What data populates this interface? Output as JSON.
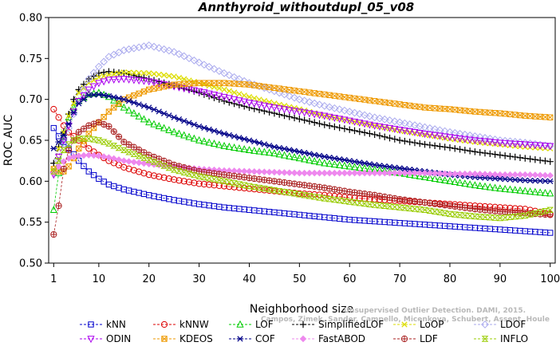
{
  "chart_data": {
    "type": "line",
    "title": "Annthyroid_withoutdupl_05_v08",
    "xlabel": "Neighborhood size",
    "ylabel": "ROC AUC",
    "xlim": [
      0,
      101
    ],
    "ylim": [
      0.5,
      0.8
    ],
    "xticks": [
      1,
      10,
      20,
      30,
      40,
      50,
      60,
      70,
      80,
      90,
      100
    ],
    "yticks": [
      0.5,
      0.55,
      0.6,
      0.65,
      0.7,
      0.75,
      0.8
    ],
    "ytick_labels": [
      "0.50",
      "0.55",
      "0.60",
      "0.65",
      "0.70",
      "0.75",
      "0.80"
    ],
    "grid": false,
    "legend_position": "bottom",
    "x": [
      1,
      2,
      3,
      4,
      5,
      6,
      8,
      10,
      12,
      15,
      20,
      25,
      30,
      35,
      40,
      45,
      50,
      55,
      60,
      65,
      70,
      75,
      80,
      85,
      90,
      95,
      100
    ],
    "series": [
      {
        "name": "kNN",
        "color": "#0000cc",
        "marker": "square",
        "values": [
          0.665,
          0.655,
          0.648,
          0.64,
          0.633,
          0.625,
          0.612,
          0.603,
          0.596,
          0.59,
          0.583,
          0.577,
          0.572,
          0.568,
          0.565,
          0.562,
          0.559,
          0.556,
          0.553,
          0.551,
          0.549,
          0.547,
          0.545,
          0.543,
          0.541,
          0.539,
          0.537
        ]
      },
      {
        "name": "kNNW",
        "color": "#dd0000",
        "marker": "circle",
        "values": [
          0.688,
          0.678,
          0.668,
          0.66,
          0.655,
          0.65,
          0.64,
          0.632,
          0.625,
          0.617,
          0.608,
          0.602,
          0.597,
          0.594,
          0.591,
          0.588,
          0.585,
          0.583,
          0.58,
          0.578,
          0.576,
          0.574,
          0.572,
          0.57,
          0.568,
          0.566,
          0.56
        ]
      },
      {
        "name": "LOF",
        "color": "#00cc00",
        "marker": "triangle-up",
        "values": [
          0.565,
          0.61,
          0.655,
          0.678,
          0.69,
          0.698,
          0.706,
          0.708,
          0.703,
          0.69,
          0.672,
          0.66,
          0.65,
          0.643,
          0.638,
          0.634,
          0.628,
          0.622,
          0.618,
          0.614,
          0.61,
          0.605,
          0.6,
          0.595,
          0.591,
          0.588,
          0.585
        ]
      },
      {
        "name": "SimplifiedLOF",
        "color": "#000000",
        "marker": "plus",
        "values": [
          0.622,
          0.642,
          0.66,
          0.682,
          0.7,
          0.712,
          0.725,
          0.732,
          0.734,
          0.732,
          0.725,
          0.717,
          0.708,
          0.698,
          0.69,
          0.683,
          0.676,
          0.669,
          0.663,
          0.657,
          0.65,
          0.645,
          0.641,
          0.636,
          0.632,
          0.628,
          0.624
        ]
      },
      {
        "name": "LoOP",
        "color": "#dddd00",
        "marker": "x",
        "values": [
          0.612,
          0.64,
          0.66,
          0.68,
          0.695,
          0.708,
          0.72,
          0.727,
          0.73,
          0.733,
          0.732,
          0.728,
          0.72,
          0.712,
          0.703,
          0.695,
          0.688,
          0.68,
          0.674,
          0.668,
          0.662,
          0.657,
          0.652,
          0.648,
          0.645,
          0.642,
          0.64
        ]
      },
      {
        "name": "LDOF",
        "color": "#aaaaee",
        "marker": "diamond",
        "values": [
          0.61,
          0.625,
          0.645,
          0.665,
          0.682,
          0.698,
          0.725,
          0.74,
          0.752,
          0.76,
          0.766,
          0.758,
          0.745,
          0.732,
          0.72,
          0.71,
          0.7,
          0.692,
          0.685,
          0.678,
          0.672,
          0.666,
          0.66,
          0.655,
          0.65,
          0.647,
          0.643
        ]
      },
      {
        "name": "ODIN",
        "color": "#aa00ee",
        "marker": "triangle-down",
        "values": [
          0.608,
          0.63,
          0.65,
          0.668,
          0.685,
          0.698,
          0.712,
          0.72,
          0.724,
          0.725,
          0.722,
          0.716,
          0.71,
          0.703,
          0.696,
          0.69,
          0.685,
          0.68,
          0.674,
          0.668,
          0.663,
          0.658,
          0.654,
          0.65,
          0.647,
          0.645,
          0.643
        ]
      },
      {
        "name": "KDEOS",
        "color": "#ee9900",
        "marker": "square-x",
        "values": [
          0.615,
          0.612,
          0.612,
          0.618,
          0.628,
          0.64,
          0.658,
          0.672,
          0.685,
          0.7,
          0.712,
          0.718,
          0.72,
          0.72,
          0.718,
          0.714,
          0.71,
          0.706,
          0.702,
          0.698,
          0.694,
          0.69,
          0.688,
          0.685,
          0.683,
          0.68,
          0.678
        ]
      },
      {
        "name": "COF",
        "color": "#000088",
        "marker": "star",
        "values": [
          0.64,
          0.648,
          0.656,
          0.67,
          0.684,
          0.695,
          0.705,
          0.706,
          0.704,
          0.7,
          0.69,
          0.678,
          0.667,
          0.658,
          0.65,
          0.642,
          0.636,
          0.63,
          0.625,
          0.62,
          0.616,
          0.612,
          0.608,
          0.605,
          0.603,
          0.601,
          0.6
        ]
      },
      {
        "name": "FastABOD",
        "color": "#ee88ee",
        "marker": "diamond-filled",
        "values": [
          0.61,
          0.618,
          0.624,
          0.628,
          0.63,
          0.631,
          0.632,
          0.631,
          0.629,
          0.625,
          0.621,
          0.618,
          0.615,
          0.613,
          0.612,
          0.611,
          0.61,
          0.61,
          0.61,
          0.61,
          0.61,
          0.61,
          0.609,
          0.609,
          0.608,
          0.608,
          0.607
        ]
      },
      {
        "name": "LDF",
        "color": "#aa2222",
        "marker": "circle-plus",
        "values": [
          0.535,
          0.57,
          0.615,
          0.638,
          0.65,
          0.66,
          0.668,
          0.672,
          0.667,
          0.648,
          0.632,
          0.62,
          0.612,
          0.608,
          0.604,
          0.6,
          0.596,
          0.592,
          0.587,
          0.583,
          0.578,
          0.574,
          0.57,
          0.566,
          0.563,
          0.561,
          0.559
        ]
      },
      {
        "name": "INFLO",
        "color": "#99cc00",
        "marker": "hourglass",
        "values": [
          0.612,
          0.625,
          0.638,
          0.645,
          0.65,
          0.652,
          0.652,
          0.65,
          0.646,
          0.638,
          0.626,
          0.614,
          0.606,
          0.6,
          0.594,
          0.589,
          0.584,
          0.579,
          0.575,
          0.571,
          0.568,
          0.565,
          0.56,
          0.557,
          0.555,
          0.558,
          0.565
        ]
      }
    ]
  },
  "watermark": {
    "line1": "Unsupervised Outlier Detection. DAMI, 2015.",
    "line2": "Campos, Zimek, Sander, Campello, Micenkova, Schubert, Assent, Houle"
  }
}
